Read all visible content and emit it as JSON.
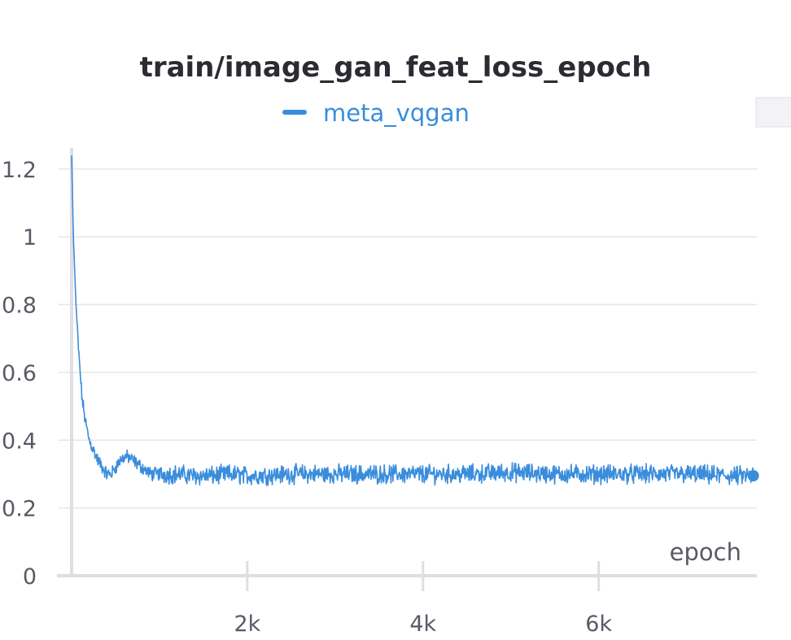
{
  "colors": {
    "series": "#3a8ddc",
    "title": "#2b2b33",
    "ticks": "#5a5a66",
    "grid": "#e6e6ea",
    "axis": "#dedee3"
  },
  "chart_data": {
    "type": "line",
    "title": "train/image_gan_feat_loss_epoch",
    "xlabel": "epoch",
    "ylabel": "",
    "xlim": [
      0,
      7800
    ],
    "ylim": [
      0,
      1.25
    ],
    "x_ticks": [
      2000,
      4000,
      6000
    ],
    "x_tick_labels": [
      "2k",
      "4k",
      "6k"
    ],
    "y_ticks": [
      0,
      0.2,
      0.4,
      0.6,
      0.8,
      1,
      1.2
    ],
    "y_tick_labels": [
      "0",
      "0.2",
      "0.4",
      "0.6",
      "0.8",
      "1",
      "1.2"
    ],
    "grid": true,
    "legend_position": "top-center",
    "series": [
      {
        "name": "meta_vqgan",
        "x": [
          0,
          20,
          50,
          80,
          120,
          160,
          200,
          250,
          300,
          350,
          400,
          450,
          500,
          550,
          600,
          650,
          700,
          750,
          800,
          900,
          1000,
          1100,
          1200,
          1400,
          1600,
          1800,
          2000,
          2500,
          3000,
          3500,
          4000,
          4500,
          5000,
          5500,
          6000,
          6500,
          7000,
          7500,
          7760
        ],
        "y": [
          1.24,
          1.0,
          0.8,
          0.66,
          0.52,
          0.45,
          0.4,
          0.37,
          0.34,
          0.32,
          0.3,
          0.3,
          0.32,
          0.34,
          0.35,
          0.35,
          0.34,
          0.33,
          0.32,
          0.3,
          0.3,
          0.3,
          0.3,
          0.295,
          0.295,
          0.3,
          0.295,
          0.3,
          0.3,
          0.3,
          0.3,
          0.3,
          0.305,
          0.3,
          0.3,
          0.3,
          0.3,
          0.295,
          0.295
        ]
      }
    ]
  }
}
